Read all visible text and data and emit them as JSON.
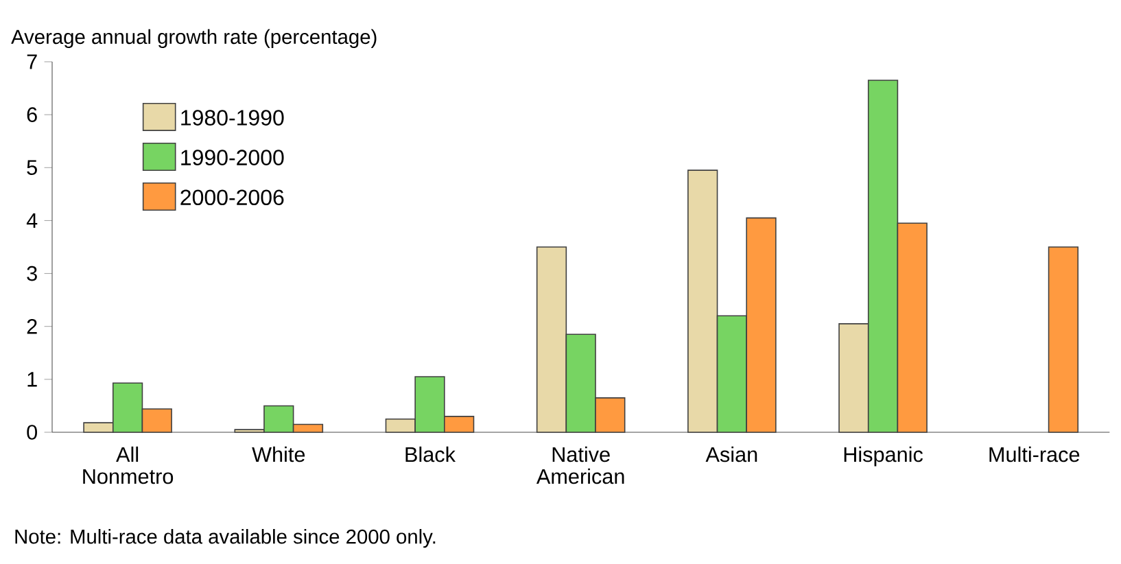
{
  "chart_data": {
    "type": "bar",
    "ylabel": "Average annual growth rate (percentage)",
    "categories": [
      "All Nonmetro",
      "White",
      "Black",
      "Native American",
      "Asian",
      "Hispanic",
      "Multi-race"
    ],
    "series": [
      {
        "name": "1980-1990",
        "color": "#e8d9a8",
        "values": [
          0.18,
          0.05,
          0.25,
          3.5,
          4.95,
          2.05,
          null
        ]
      },
      {
        "name": "1990-2000",
        "color": "#77d462",
        "values": [
          0.93,
          0.5,
          1.05,
          1.85,
          2.2,
          6.65,
          null
        ]
      },
      {
        "name": "2000-2006",
        "color": "#ff9a40",
        "values": [
          0.44,
          0.15,
          0.3,
          0.65,
          4.05,
          3.95,
          3.5
        ]
      }
    ],
    "ylim": [
      0,
      7
    ],
    "yticks": [
      0,
      1,
      2,
      3,
      4,
      5,
      6,
      7
    ],
    "grid": false,
    "legend": "top left",
    "annotations": [
      "Note: Multi-race data available since 2000 only."
    ]
  }
}
